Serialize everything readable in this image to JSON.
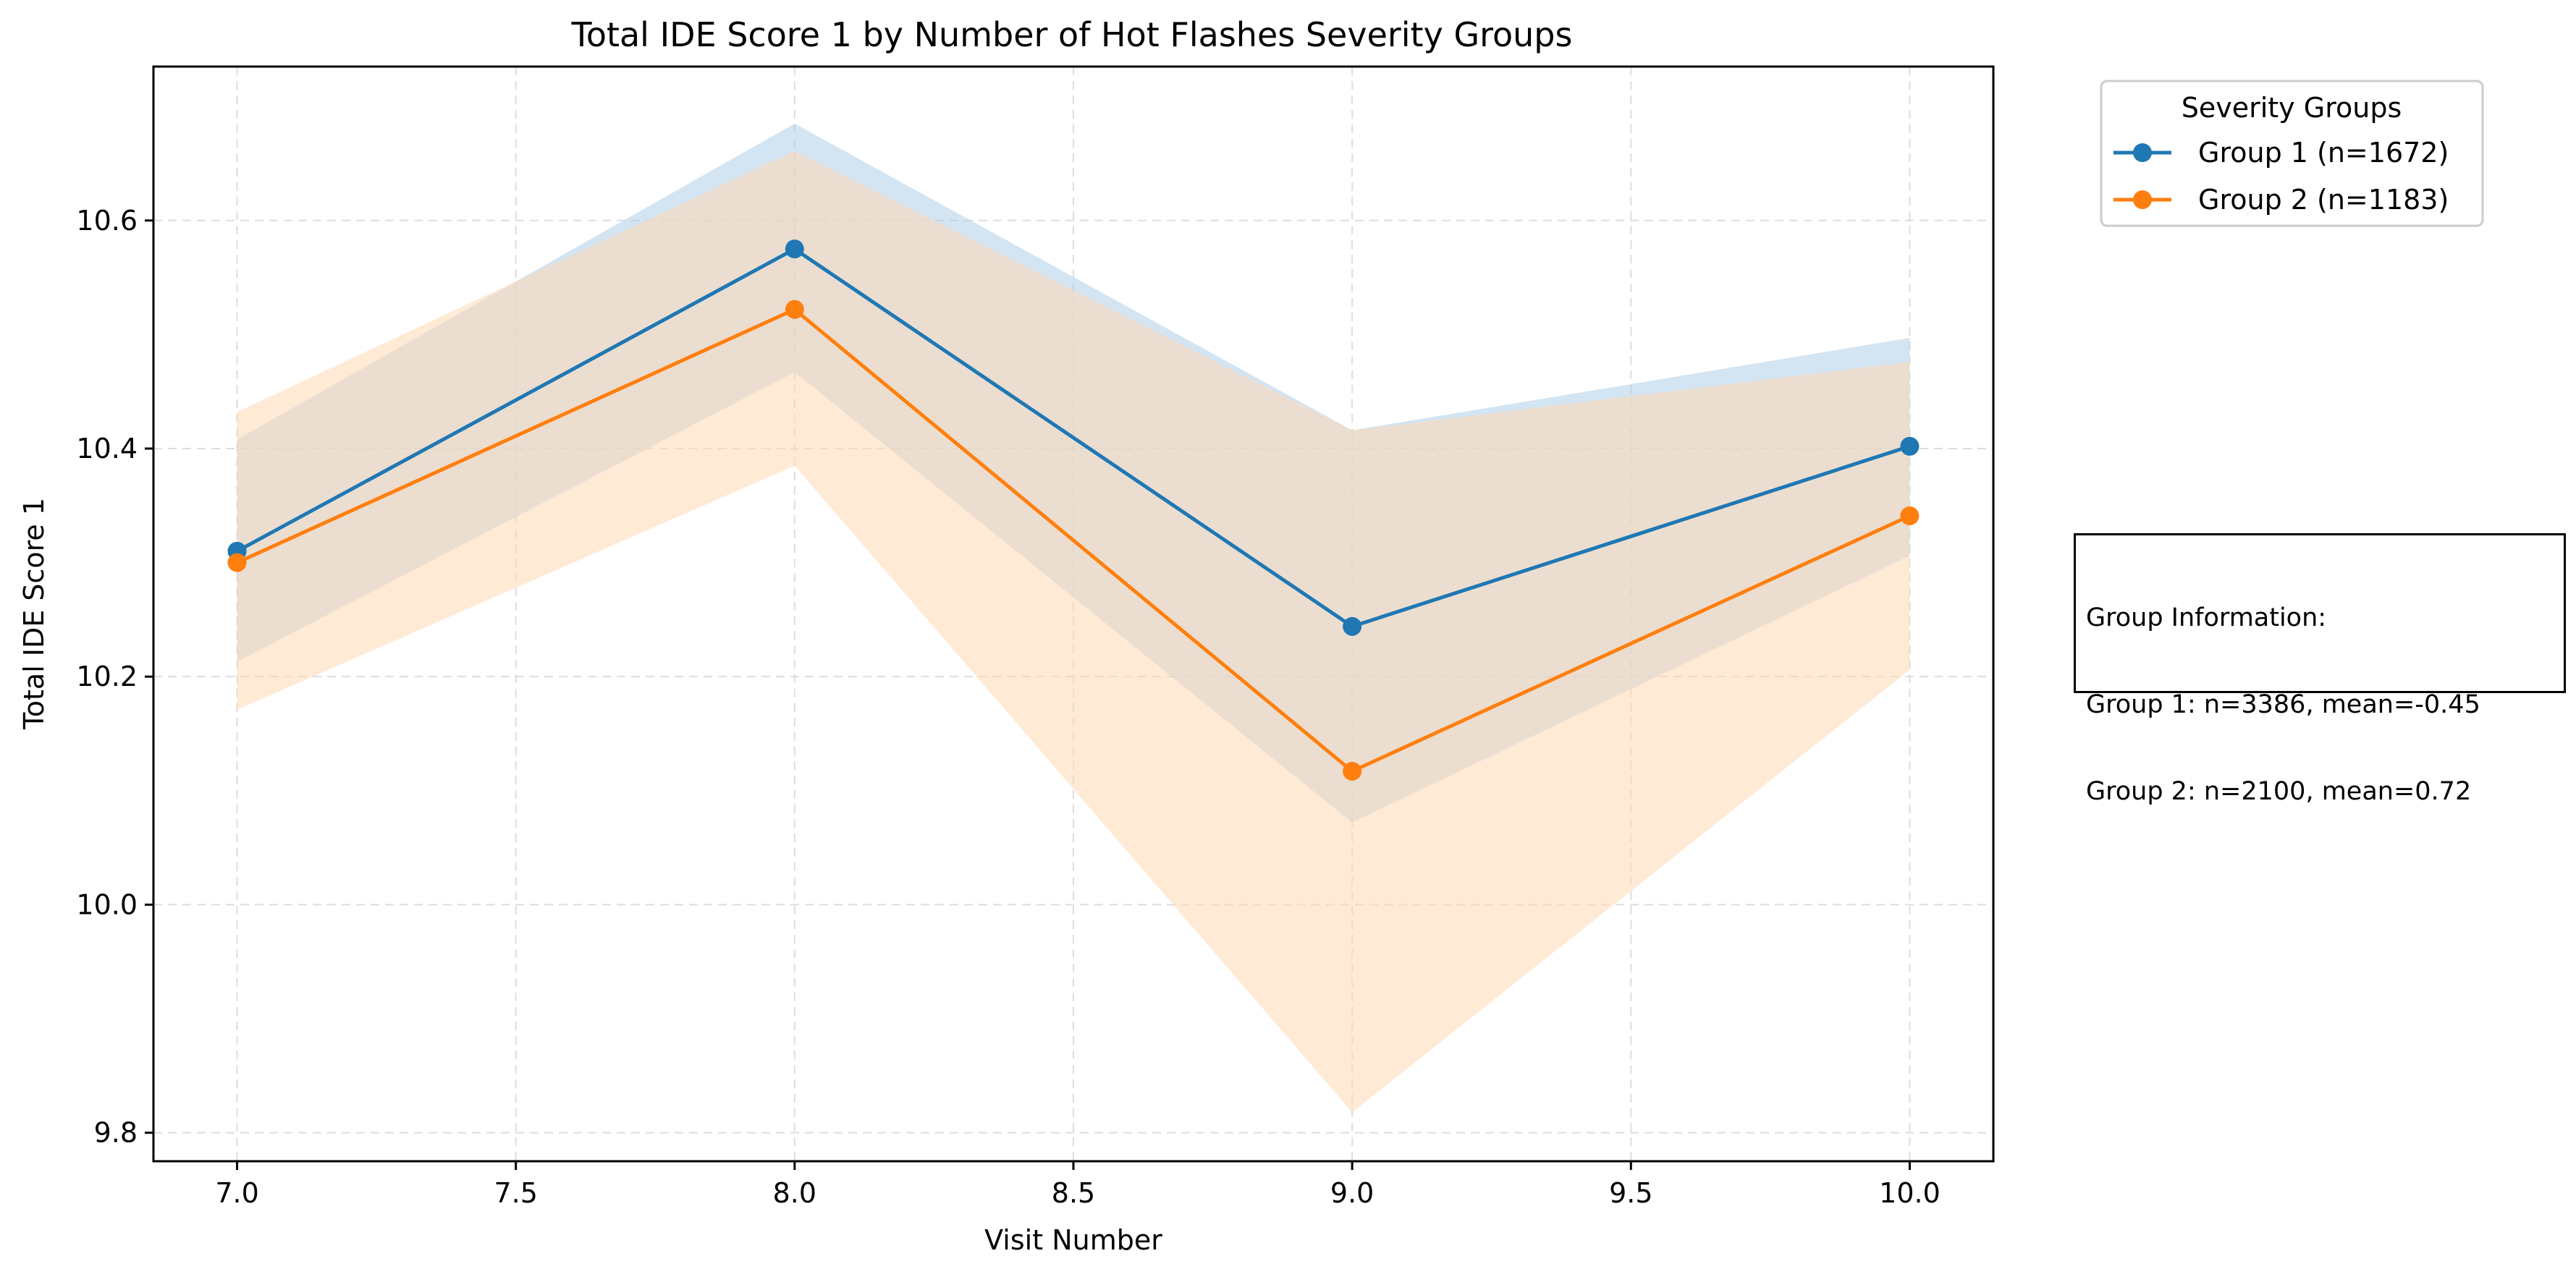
{
  "chart_data": {
    "type": "line",
    "title": "Total IDE Score 1 by Number of Hot Flashes Severity Groups",
    "xlabel": "Visit Number",
    "ylabel": "Total IDE Score 1",
    "xlim": [
      6.85,
      10.15
    ],
    "ylim": [
      9.775,
      10.735
    ],
    "x_ticks": [
      "7.0",
      "7.5",
      "8.0",
      "8.5",
      "9.0",
      "9.5",
      "10.0"
    ],
    "y_ticks": [
      "9.8",
      "10.0",
      "10.2",
      "10.4",
      "10.6"
    ],
    "grid": true,
    "legend": {
      "title": "Severity Groups",
      "placement": "outside top-right"
    },
    "x": [
      7,
      8,
      9,
      10
    ],
    "series": [
      {
        "name": "Group 1 (n=1672)",
        "color": "#1f77b4",
        "band_color": "#aecde8",
        "values": [
          10.31,
          10.575,
          10.244,
          10.402
        ],
        "lower": [
          10.213,
          10.467,
          10.072,
          10.306
        ],
        "upper": [
          10.408,
          10.685,
          10.416,
          10.497
        ]
      },
      {
        "name": "Group 2 (n=1183)",
        "color": "#ff7f0e",
        "band_color": "#ffd8b5",
        "values": [
          10.3,
          10.522,
          10.117,
          10.341
        ],
        "lower": [
          10.171,
          10.385,
          9.818,
          10.206
        ],
        "upper": [
          10.432,
          10.661,
          10.416,
          10.476
        ]
      }
    ]
  },
  "info_box": {
    "lines": [
      "Group Information:",
      "Group 1: n=3386, mean=-0.45",
      "Group 2: n=2100, mean=0.72"
    ]
  }
}
